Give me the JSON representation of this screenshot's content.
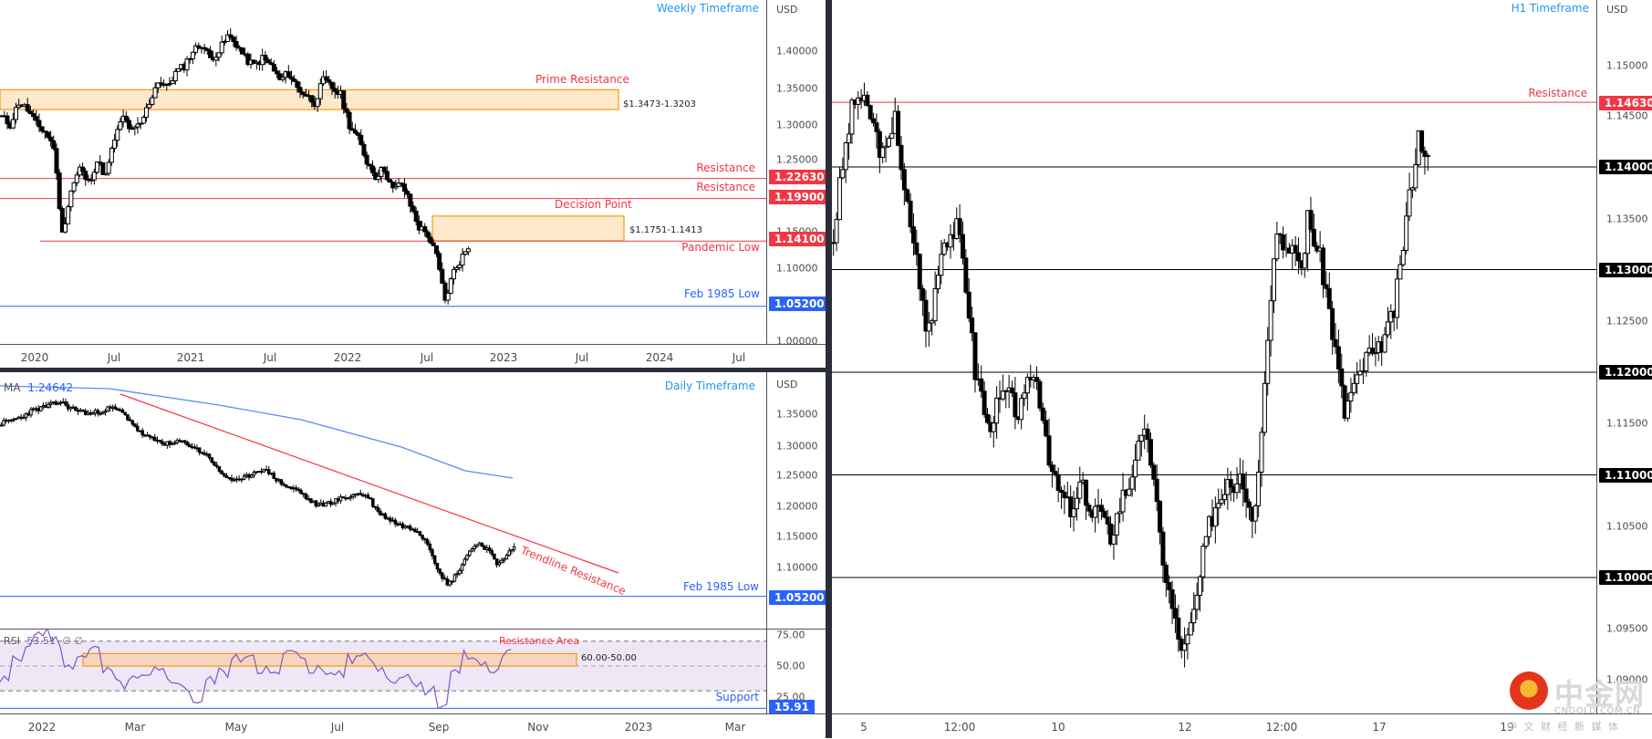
{
  "colors": {
    "resistance": "#f23645",
    "support_blue": "#2962ff",
    "timeframe_label": "#2196f3",
    "zone_fill": "#ffe9cc",
    "zone_border": "#ff9800",
    "ma_line": "#5b8def",
    "rsi_line": "#7e57c2",
    "rsi_band": "#ede7f6",
    "level_black": "#000000"
  },
  "weekly": {
    "title": "Weekly Timeframe",
    "currency": "USD",
    "y_ticks": [
      "1.40000",
      "1.35000",
      "1.30000",
      "1.25000",
      "1.15000",
      "1.10000",
      "1.00000"
    ],
    "x_ticks": [
      "2020",
      "Jul",
      "2021",
      "Jul",
      "2022",
      "Jul",
      "2023",
      "Jul",
      "2024",
      "Jul"
    ],
    "zones": [
      {
        "label": "Prime Resistance",
        "range_text": "$1.3473-1.3203"
      },
      {
        "label": "Decision Point",
        "range_text": "$1.1751-1.1413"
      }
    ],
    "levels": [
      {
        "label": "Resistance",
        "value": "1.22630"
      },
      {
        "label": "Resistance",
        "value": "1.19900"
      },
      {
        "label": "Pandemic Low",
        "value": "1.14100"
      },
      {
        "label": "Feb 1985 Low",
        "value": "1.05200"
      }
    ]
  },
  "daily": {
    "title": "Daily Timeframe",
    "currency": "USD",
    "ma_label": "MA",
    "ma_value": "1.24642",
    "y_ticks": [
      "1.35000",
      "1.30000",
      "1.25000",
      "1.20000",
      "1.15000",
      "1.10000"
    ],
    "trendline_label": "Trendline Resistance",
    "levels": [
      {
        "label": "Feb 1985 Low",
        "value": "1.05200"
      }
    ],
    "rsi": {
      "label": "RSI",
      "value": "53.51",
      "extra": "∅  ∅",
      "y_ticks": [
        "75.00",
        "50.00",
        "25.00"
      ],
      "zone_label": "Resistance Area",
      "zone_range": "60.00-50.00",
      "support_label": "Support",
      "support_value": "15.91"
    },
    "x_ticks": [
      "2022",
      "Mar",
      "May",
      "Jul",
      "Sep",
      "Nov",
      "2023",
      "Mar"
    ]
  },
  "h1": {
    "title": "H1 Timeframe",
    "currency": "USD",
    "y_ticks": [
      "1.15000",
      "1.14500",
      "1.13500",
      "1.12500",
      "1.11500",
      "1.10500",
      "1.09500",
      "1.09000"
    ],
    "levels": [
      {
        "label": "Resistance",
        "value": "1.14630"
      },
      {
        "label": "",
        "value": "1.14000"
      },
      {
        "label": "",
        "value": "1.13000"
      },
      {
        "label": "",
        "value": "1.12000"
      },
      {
        "label": "",
        "value": "1.11000"
      },
      {
        "label": "",
        "value": "1.10000"
      }
    ],
    "x_ticks": [
      "5",
      "12:00",
      "10",
      "12",
      "12:00",
      "17",
      "19"
    ]
  },
  "watermark": {
    "brand_cn": "中金网",
    "domain": "CNGOLD.COM.CN",
    "tagline": "中 文 财 经 新 媒 体"
  },
  "chart_data": [
    {
      "type": "candlestick",
      "title": "Weekly Timeframe",
      "ylabel": "USD",
      "ylim": [
        0.99,
        1.43
      ],
      "x_ticks": [
        "2020",
        "Jul",
        "2021",
        "Jul",
        "2022",
        "Jul",
        "2023",
        "Jul",
        "2024",
        "Jul"
      ],
      "close_path": [
        1.31,
        1.3,
        1.33,
        1.32,
        1.3,
        1.29,
        1.27,
        1.15,
        1.21,
        1.24,
        1.22,
        1.25,
        1.23,
        1.28,
        1.31,
        1.29,
        1.3,
        1.33,
        1.36,
        1.35,
        1.37,
        1.38,
        1.4,
        1.41,
        1.39,
        1.4,
        1.42,
        1.41,
        1.39,
        1.38,
        1.39,
        1.38,
        1.36,
        1.37,
        1.35,
        1.34,
        1.33,
        1.36,
        1.35,
        1.34,
        1.3,
        1.28,
        1.25,
        1.23,
        1.24,
        1.21,
        1.22,
        1.19,
        1.16,
        1.15,
        1.12,
        1.06,
        1.1,
        1.12,
        1.14
      ],
      "zones": [
        {
          "name": "Prime Resistance",
          "high": 1.3473,
          "low": 1.3203
        },
        {
          "name": "Decision Point",
          "high": 1.1751,
          "low": 1.1413
        }
      ],
      "hlines": [
        {
          "name": "Resistance",
          "y": 1.2263
        },
        {
          "name": "Resistance",
          "y": 1.199
        },
        {
          "name": "Pandemic Low",
          "y": 1.141
        },
        {
          "name": "Feb 1985 Low",
          "y": 1.052
        }
      ]
    },
    {
      "type": "candlestick",
      "title": "Daily Timeframe",
      "ylabel": "USD",
      "ylim": [
        1.03,
        1.39
      ],
      "ma": {
        "name": "MA",
        "last": 1.24642
      },
      "close_path": [
        1.335,
        1.34,
        1.345,
        1.355,
        1.36,
        1.365,
        1.37,
        1.36,
        1.355,
        1.35,
        1.355,
        1.36,
        1.355,
        1.34,
        1.32,
        1.31,
        1.305,
        1.3,
        1.305,
        1.3,
        1.29,
        1.28,
        1.255,
        1.245,
        1.24,
        1.25,
        1.26,
        1.255,
        1.24,
        1.23,
        1.225,
        1.21,
        1.2,
        1.205,
        1.21,
        1.215,
        1.22,
        1.215,
        1.19,
        1.18,
        1.17,
        1.165,
        1.16,
        1.14,
        1.1,
        1.07,
        1.09,
        1.12,
        1.14,
        1.13,
        1.105,
        1.12,
        1.135
      ],
      "trendline": {
        "name": "Trendline Resistance"
      },
      "hlines": [
        {
          "name": "Feb 1985 Low",
          "y": 1.052
        }
      ],
      "rsi": {
        "value": 53.51,
        "ylim": [
          0,
          90
        ],
        "bands": [
          70,
          50,
          30
        ],
        "zone": [
          50,
          60
        ],
        "support": 15.91
      }
    },
    {
      "type": "candlestick",
      "title": "H1 Timeframe",
      "ylabel": "USD",
      "ylim": [
        1.087,
        1.152
      ],
      "x_ticks": [
        "5",
        "12:00",
        "10",
        "12",
        "12:00",
        "17",
        "19"
      ],
      "close_path": [
        1.133,
        1.138,
        1.142,
        1.1455,
        1.147,
        1.146,
        1.145,
        1.143,
        1.141,
        1.142,
        1.146,
        1.139,
        1.136,
        1.133,
        1.129,
        1.124,
        1.1255,
        1.1305,
        1.133,
        1.1335,
        1.134,
        1.131,
        1.126,
        1.12,
        1.118,
        1.1145,
        1.116,
        1.117,
        1.118,
        1.117,
        1.116,
        1.117,
        1.12,
        1.119,
        1.116,
        1.112,
        1.109,
        1.108,
        1.107,
        1.106,
        1.109,
        1.108,
        1.106,
        1.107,
        1.105,
        1.104,
        1.106,
        1.108,
        1.109,
        1.112,
        1.113,
        1.114,
        1.109,
        1.104,
        1.1,
        1.097,
        1.094,
        1.093,
        1.095,
        1.098,
        1.102,
        1.105,
        1.107,
        1.108,
        1.11,
        1.109,
        1.111,
        1.108,
        1.106,
        1.11,
        1.12,
        1.128,
        1.134,
        1.133,
        1.131,
        1.132,
        1.13,
        1.135,
        1.133,
        1.131,
        1.128,
        1.124,
        1.12,
        1.116,
        1.118,
        1.119,
        1.1205,
        1.122,
        1.121,
        1.123,
        1.124,
        1.126,
        1.13,
        1.135,
        1.139,
        1.143,
        1.142,
        1.139
      ],
      "hlines": [
        {
          "name": "Resistance",
          "y": 1.1463
        },
        {
          "y": 1.14
        },
        {
          "y": 1.13
        },
        {
          "y": 1.12
        },
        {
          "y": 1.11
        },
        {
          "y": 1.1
        }
      ]
    }
  ]
}
